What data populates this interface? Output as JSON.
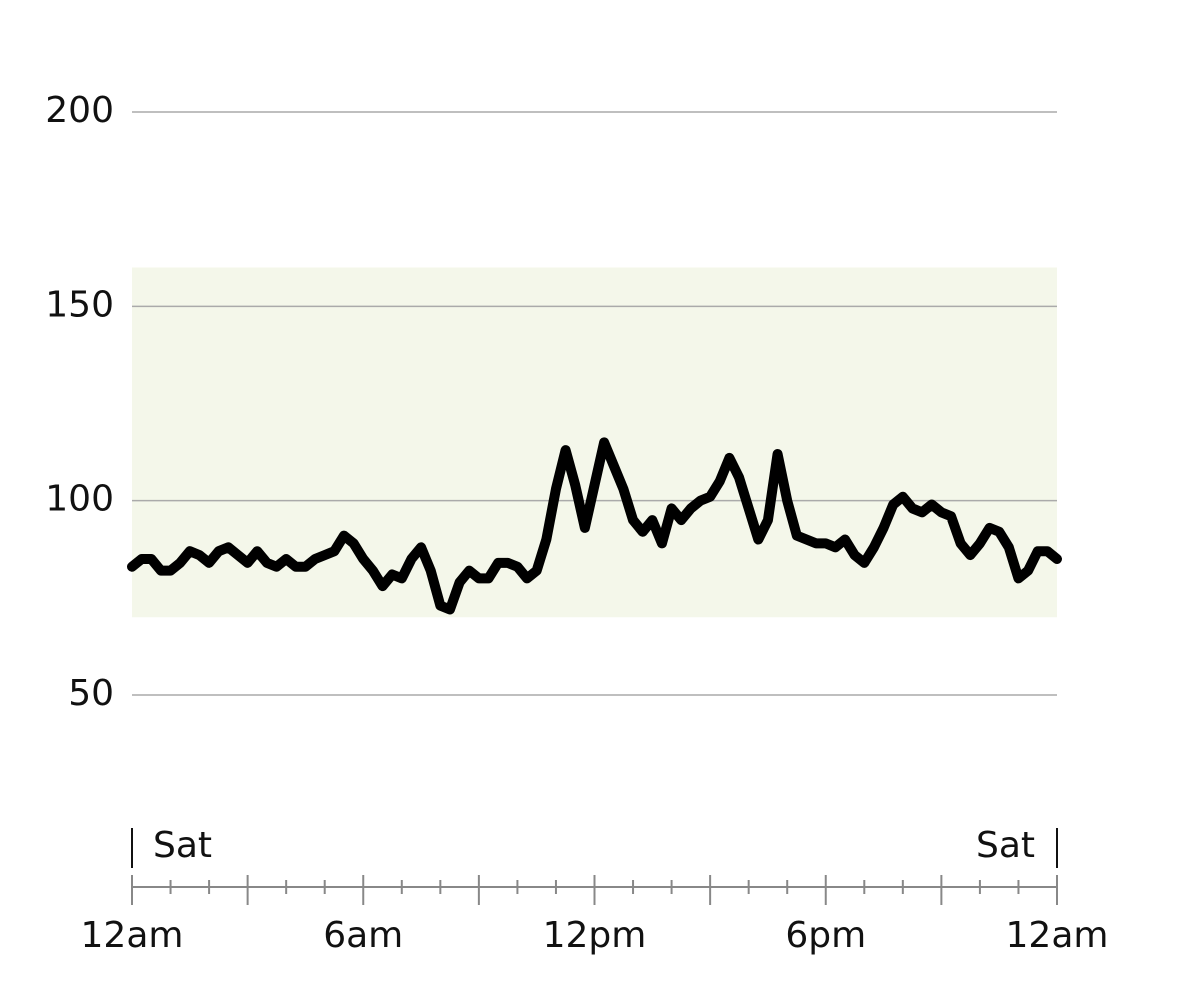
{
  "chart_data": {
    "type": "line",
    "x": [
      0,
      0.25,
      0.5,
      0.75,
      1,
      1.25,
      1.5,
      1.75,
      2,
      2.25,
      2.5,
      2.75,
      3,
      3.25,
      3.5,
      3.75,
      4,
      4.25,
      4.5,
      4.75,
      5,
      5.25,
      5.5,
      5.75,
      6,
      6.25,
      6.5,
      6.75,
      7,
      7.25,
      7.5,
      7.75,
      8,
      8.25,
      8.5,
      8.75,
      9,
      9.25,
      9.5,
      9.75,
      10,
      10.25,
      10.5,
      10.75,
      11,
      11.25,
      11.5,
      11.75,
      12,
      12.25,
      12.5,
      12.75,
      13,
      13.25,
      13.5,
      13.75,
      14,
      14.25,
      14.5,
      14.75,
      15,
      15.25,
      15.5,
      15.75,
      16,
      16.25,
      16.5,
      16.75,
      17,
      17.25,
      17.5,
      17.75,
      18,
      18.25,
      18.5,
      18.75,
      19,
      19.25,
      19.5,
      19.75,
      20,
      20.25,
      20.5,
      20.75,
      21,
      21.25,
      21.5,
      21.75,
      22,
      22.25,
      22.5,
      22.75,
      23,
      23.25,
      23.5,
      23.75,
      24
    ],
    "series": [
      {
        "color": "#000000",
        "values": [
          83,
          85,
          85,
          82,
          82,
          84,
          87,
          86,
          84,
          87,
          88,
          86,
          84,
          87,
          84,
          83,
          85,
          83,
          83,
          85,
          86,
          87,
          91,
          89,
          85,
          82,
          78,
          81,
          80,
          85,
          88,
          82,
          73,
          72,
          79,
          82,
          80,
          80,
          84,
          84,
          83,
          80,
          82,
          90,
          103,
          113,
          104,
          93,
          104,
          115,
          109,
          103,
          95,
          92,
          95,
          89,
          98,
          95,
          98,
          100,
          101,
          105,
          111,
          106,
          98,
          90,
          95,
          112,
          100,
          91,
          90,
          89,
          89,
          88,
          90,
          86,
          84,
          88,
          93,
          99,
          101,
          98,
          97,
          99,
          97,
          96,
          89,
          86,
          89,
          93,
          92,
          88,
          80,
          82,
          87,
          87,
          85
        ]
      }
    ],
    "target_range": [
      70,
      160
    ],
    "target_color": "#f4f7ea",
    "ylim": [
      50,
      200
    ],
    "yticks": [
      50,
      100,
      150,
      200
    ],
    "grid": true,
    "xlim": [
      0,
      24
    ],
    "xticks": [
      {
        "value": 0,
        "label": "12am"
      },
      {
        "value": 6,
        "label": "6am"
      },
      {
        "value": 12,
        "label": "12pm"
      },
      {
        "value": 18,
        "label": "6pm"
      },
      {
        "value": 24,
        "label": "12am"
      }
    ],
    "xticks_minor": [
      1,
      2,
      3,
      4,
      5,
      7,
      8,
      9,
      10,
      11,
      13,
      14,
      15,
      16,
      17,
      19,
      20,
      21,
      22,
      23
    ],
    "day_markers": [
      {
        "x": 0,
        "label": "Sat"
      },
      {
        "x": 24,
        "label": "Sat"
      }
    ]
  }
}
